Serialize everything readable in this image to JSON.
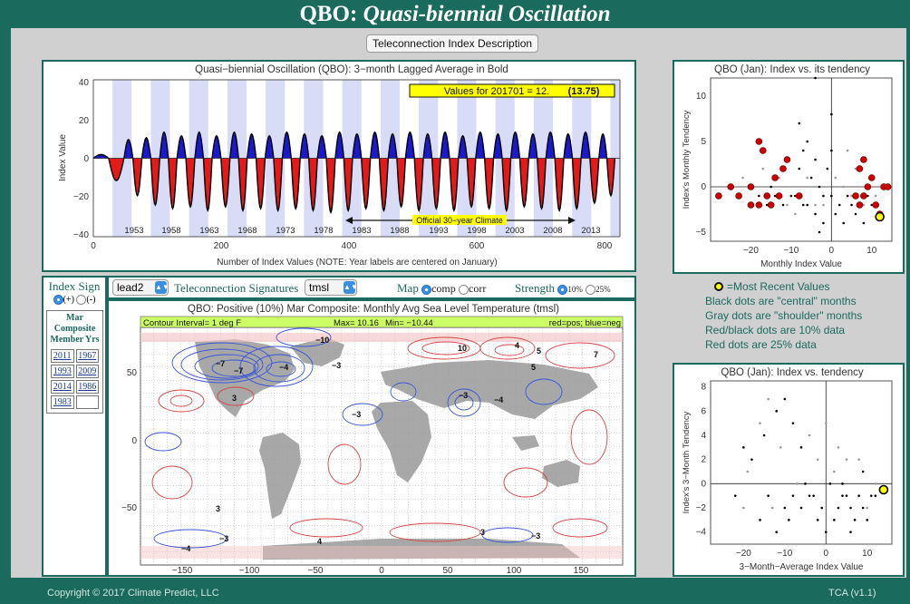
{
  "header": {
    "title_prefix": "QBO:",
    "title_italic": "Quasi-biennial Oscillation"
  },
  "description_button": "Teleconnection Index Description",
  "timeseries": {
    "title": "Quasi−biennial Oscillation (QBO): 3−month Lagged Average in Bold",
    "ylabel": "Index Value",
    "xlabel": "Number of Index Values (NOTE: Year labels are centered on January)",
    "yticks": [
      "40",
      "20",
      "0",
      "−20",
      "−40"
    ],
    "xticks": [
      "0",
      "200",
      "400",
      "600",
      "800"
    ],
    "years": [
      "1953",
      "1958",
      "1963",
      "1968",
      "1973",
      "1978",
      "1983",
      "1988",
      "1993",
      "1998",
      "2003",
      "2008",
      "2013"
    ],
    "values_label": "Values for 201701 = 12.",
    "values_paren": "(13.75)",
    "climate_label": "Official 30−year Climate"
  },
  "chart_data": [
    {
      "type": "area",
      "title": "Quasi−biennial Oscillation (QBO): 3−month Lagged Average in Bold",
      "xlabel": "Number of Index Values (NOTE: Year labels are centered on January)",
      "ylabel": "Index Value",
      "xlim": [
        0,
        825
      ],
      "ylim": [
        -42,
        42
      ],
      "positive_color": "#1a1acc",
      "negative_color": "#e41a1a",
      "cycles": [
        {
          "x": [
            0,
            48
          ],
          "peak": 2,
          "trough": -12
        },
        {
          "x": [
            48,
            76
          ],
          "peak": 10,
          "trough": -20
        },
        {
          "x": [
            76,
            104
          ],
          "peak": 11,
          "trough": -25
        },
        {
          "x": [
            104,
            131
          ],
          "peak": 14,
          "trough": -27
        },
        {
          "x": [
            131,
            159
          ],
          "peak": 12,
          "trough": -26
        },
        {
          "x": [
            159,
            186
          ],
          "peak": 14,
          "trough": -28
        },
        {
          "x": [
            186,
            214
          ],
          "peak": 12,
          "trough": -26
        },
        {
          "x": [
            214,
            241
          ],
          "peak": 14,
          "trough": -28
        },
        {
          "x": [
            241,
            269
          ],
          "peak": 13,
          "trough": -27
        },
        {
          "x": [
            269,
            296
          ],
          "peak": 12,
          "trough": -28
        },
        {
          "x": [
            296,
            324
          ],
          "peak": 14,
          "trough": -27
        },
        {
          "x": [
            324,
            351
          ],
          "peak": 13,
          "trough": -28
        },
        {
          "x": [
            351,
            379
          ],
          "peak": 12,
          "trough": -29
        },
        {
          "x": [
            379,
            406
          ],
          "peak": 14,
          "trough": -28
        },
        {
          "x": [
            406,
            434
          ],
          "peak": 13,
          "trough": -27
        },
        {
          "x": [
            434,
            462
          ],
          "peak": 14,
          "trough": -28
        },
        {
          "x": [
            462,
            489
          ],
          "peak": 13,
          "trough": -26
        },
        {
          "x": [
            489,
            517
          ],
          "peak": 14,
          "trough": -28
        },
        {
          "x": [
            517,
            544
          ],
          "peak": 13,
          "trough": -27
        },
        {
          "x": [
            544,
            572
          ],
          "peak": 14,
          "trough": -28
        },
        {
          "x": [
            572,
            599
          ],
          "peak": 12,
          "trough": -26
        },
        {
          "x": [
            599,
            627
          ],
          "peak": 14,
          "trough": -27
        },
        {
          "x": [
            627,
            654
          ],
          "peak": 13,
          "trough": -28
        },
        {
          "x": [
            654,
            682
          ],
          "peak": 14,
          "trough": -26
        },
        {
          "x": [
            682,
            709
          ],
          "peak": 13,
          "trough": -27
        },
        {
          "x": [
            709,
            737
          ],
          "peak": 14,
          "trough": -28
        },
        {
          "x": [
            737,
            764
          ],
          "peak": 13,
          "trough": -27
        },
        {
          "x": [
            764,
            792
          ],
          "peak": 14,
          "trough": -24
        },
        {
          "x": [
            792,
            817
          ],
          "peak": 13,
          "trough": -20
        }
      ],
      "latest": {
        "date": "201701",
        "value": 12,
        "lagged_average": 13.75
      }
    },
    {
      "type": "scatter",
      "title": "QBO (Jan): Index vs. its tendency",
      "xlabel": "Monthly Index Value",
      "ylabel": "Index's Monthly Tendency",
      "xlim": [
        -30,
        15
      ],
      "ylim": [
        -6,
        12
      ],
      "series": [
        {
          "color": "#000000",
          "points": [
            [
              -8,
              7
            ],
            [
              -6,
              5
            ],
            [
              -4,
              3
            ],
            [
              -10,
              -1
            ],
            [
              -12,
              -2
            ],
            [
              -14,
              -1
            ],
            [
              -6,
              -2
            ],
            [
              -4,
              -3
            ],
            [
              -2,
              -1
            ],
            [
              0,
              4
            ],
            [
              1,
              -3
            ],
            [
              3,
              -4
            ],
            [
              -2,
              -4
            ],
            [
              0,
              -1
            ],
            [
              -5,
              1
            ],
            [
              -7,
              -2
            ],
            [
              -3,
              -5
            ],
            [
              -9,
              -1
            ],
            [
              -1,
              2
            ],
            [
              2,
              -2
            ],
            [
              5,
              -2
            ],
            [
              6,
              -3
            ],
            [
              8,
              -4
            ],
            [
              10,
              -2
            ],
            [
              9,
              -1
            ],
            [
              -3,
              0
            ],
            [
              -16,
              -2
            ],
            [
              -18,
              -1
            ],
            [
              -15,
              0
            ],
            [
              -4,
              12
            ],
            [
              0,
              8
            ],
            [
              -7,
              4
            ],
            [
              -8,
              2
            ],
            [
              4,
              -1
            ]
          ]
        },
        {
          "color": "#999999",
          "points": [
            [
              -20,
              0
            ],
            [
              -11,
              -2
            ],
            [
              -6,
              1
            ],
            [
              3,
              0
            ],
            [
              4,
              4
            ],
            [
              6,
              2
            ],
            [
              -22,
              1
            ],
            [
              -2,
              -2
            ],
            [
              -13,
              1
            ],
            [
              5,
              -1
            ],
            [
              8,
              -2
            ],
            [
              1,
              1
            ],
            [
              -9,
              -3
            ],
            [
              -17,
              2
            ],
            [
              11,
              -1
            ],
            [
              -4,
              -2
            ]
          ]
        },
        {
          "color": "#cc0000",
          "points": [
            [
              -18,
              5
            ],
            [
              -17,
              4
            ],
            [
              -12,
              2
            ],
            [
              -11,
              3
            ],
            [
              -14,
              1
            ],
            [
              -13,
              -1
            ],
            [
              -18,
              -2
            ],
            [
              -16,
              -1
            ],
            [
              -20,
              0
            ],
            [
              -23,
              -1
            ],
            [
              -28,
              -1
            ],
            [
              -25,
              0
            ],
            [
              -20,
              -2
            ],
            [
              -15,
              -2
            ],
            [
              7,
              2
            ],
            [
              8,
              3
            ],
            [
              9,
              0
            ],
            [
              10,
              1
            ],
            [
              8,
              -1
            ],
            [
              7,
              -2
            ],
            [
              11,
              -2
            ],
            [
              12,
              -3
            ],
            [
              13,
              0
            ],
            [
              14,
              0
            ],
            [
              -8,
              -1
            ],
            [
              6,
              -1
            ]
          ]
        }
      ],
      "highlight": {
        "x": 12,
        "y": -3.3
      }
    },
    {
      "type": "scatter",
      "title": "QBO (Jan): Index vs. tendency",
      "xlabel": "3−Month−Average Index Value",
      "ylabel": "Index's 3−Month Tendency",
      "xlim": [
        -28,
        16
      ],
      "ylim": [
        -5,
        8.5
      ],
      "series": [
        {
          "color": "#000000",
          "points": [
            [
              -10,
              7
            ],
            [
              -12,
              6
            ],
            [
              -8,
              5
            ],
            [
              -15,
              4
            ],
            [
              -20,
              3
            ],
            [
              -18,
              2
            ],
            [
              -6,
              3
            ],
            [
              -14,
              -1
            ],
            [
              -8,
              -1
            ],
            [
              -10,
              -2
            ],
            [
              -6,
              -2
            ],
            [
              -4,
              -1
            ],
            [
              -2,
              -3
            ],
            [
              2,
              -3
            ],
            [
              3,
              -2
            ],
            [
              5,
              -1
            ],
            [
              6,
              -2
            ],
            [
              8,
              -1
            ],
            [
              10,
              -3
            ],
            [
              9,
              -2
            ],
            [
              7,
              -3
            ],
            [
              11,
              -1
            ],
            [
              4,
              -1
            ],
            [
              -1,
              -2
            ],
            [
              -3,
              -1
            ],
            [
              -16,
              -3
            ],
            [
              -12,
              -4
            ],
            [
              0,
              -4
            ],
            [
              6,
              -4
            ],
            [
              12,
              -1
            ],
            [
              -22,
              -1
            ],
            [
              -9,
              -3
            ],
            [
              -5,
              0
            ],
            [
              1,
              0
            ],
            [
              4,
              0
            ],
            [
              9,
              1
            ]
          ]
        },
        {
          "color": "#999999",
          "points": [
            [
              -14,
              7
            ],
            [
              -16,
              5
            ],
            [
              -4,
              4
            ],
            [
              -11,
              3
            ],
            [
              0,
              5
            ],
            [
              3,
              3
            ],
            [
              8,
              2
            ],
            [
              10,
              -2
            ],
            [
              -19,
              1
            ],
            [
              -7,
              0
            ],
            [
              2,
              1
            ],
            [
              -2,
              2
            ],
            [
              5,
              2
            ],
            [
              12,
              0
            ],
            [
              -13,
              -2
            ],
            [
              -20,
              -2
            ]
          ]
        }
      ],
      "highlight": {
        "x": 14,
        "y": -0.5
      }
    }
  ],
  "controls": {
    "index_sign_label": "Index Sign",
    "plus_label": "(+)",
    "minus_label": "(-)",
    "lead_value": "lead2",
    "signatures_label": "Teleconnection Signatures",
    "var_value": "tmsl",
    "map_label": "Map",
    "comp_label": "comp",
    "corr_label": "corr",
    "strength_label": "Strength",
    "s10_label": "10%",
    "s25_label": "25%"
  },
  "composite": {
    "header1": "Mar",
    "header2": "Composite",
    "header3": "Member Yrs",
    "years": [
      "2011",
      "1967",
      "1993",
      "2009",
      "2014",
      "1986",
      "1983",
      ""
    ]
  },
  "map": {
    "title": "QBO: Positive (10%) Mar Composite: Monthly Avg Sea Level Temperature (tmsl)",
    "contour_label": "Contour Interval= 1 deg F",
    "max_label": "Max= 10.16",
    "min_label": "Min= −10.44",
    "color_label": "red=pos; blue=neg",
    "yticks": [
      "50",
      "0",
      "−50"
    ],
    "xticks": [
      "−150",
      "−100",
      "−50",
      "0",
      "50",
      "100",
      "150"
    ],
    "contour_labels": [
      "−10",
      "−7",
      "−7",
      "−4",
      "−3",
      "3",
      "10",
      "4",
      "5",
      "5",
      "7",
      "−3",
      "−4",
      "−3",
      "−4",
      "−3",
      "3",
      "4",
      "3",
      "−3"
    ]
  },
  "legend": {
    "most_recent": "=Most  Recent Values",
    "black": "Black dots are \"central\" months",
    "gray": "Gray dots are \"shoulder\" months",
    "redblack": "Red/black dots are 10% data",
    "red": "Red dots are 25% data"
  },
  "scatter1": {
    "yticks": [
      "10",
      "5",
      "0",
      "−5"
    ],
    "xticks": [
      "−20",
      "−10",
      "0",
      "10"
    ]
  },
  "scatter2": {
    "yticks": [
      "8",
      "6",
      "4",
      "2",
      "0",
      "−2",
      "−4"
    ],
    "xticks": [
      "−20",
      "−10",
      "0",
      "10"
    ]
  },
  "footer": {
    "copyright": "Copyright © 2017 Climate Predict, LLC",
    "version": "TCA (v1.1)"
  }
}
